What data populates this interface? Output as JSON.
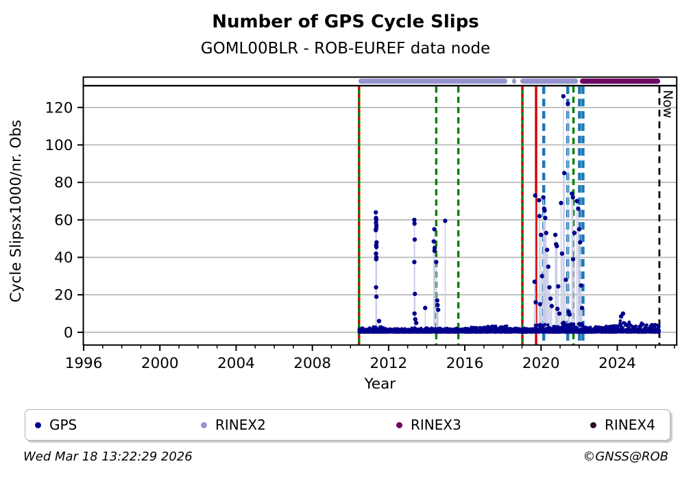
{
  "header": {
    "title": "Number of GPS Cycle Slips",
    "subtitle": "GOML00BLR - ROB-EUREF data node"
  },
  "footer": {
    "timestamp": "Wed Mar 18 13:22:29 2026",
    "copyright": "©GNSS@ROB"
  },
  "legend": {
    "items": [
      {
        "label": "GPS",
        "color": "#00008B"
      },
      {
        "label": "RINEX2",
        "color": "#9694CE"
      },
      {
        "label": "RINEX3",
        "color": "#6F0664"
      },
      {
        "label": "RINEX4",
        "color": "#2B0A26"
      }
    ]
  },
  "chart_data": {
    "type": "scatter",
    "title": "Number of GPS Cycle Slips",
    "subtitle": "GOML00BLR - ROB-EUREF data node",
    "xlabel": "Year",
    "ylabel": "Cycle Slipsx1000/nr. Obs",
    "xlim": [
      1995.98,
      2027.12
    ],
    "ylim": [
      -6.8,
      136.2
    ],
    "xticks": [
      1996,
      2000,
      2004,
      2008,
      2012,
      2016,
      2020,
      2024
    ],
    "x_minor_step": 1,
    "yticks": [
      0,
      20,
      40,
      60,
      80,
      100,
      120
    ],
    "grid": "horizontal",
    "gridline_color": "#b2b2b2",
    "series_color": "#00008B",
    "stem_color": "#c9cce6",
    "top_rule_y": 131.6,
    "now_line": {
      "x": 2026.21,
      "label": "Now",
      "color": "#000000",
      "style": "dashed"
    },
    "event_lines": [
      {
        "x": 2010.45,
        "color": "#007F00",
        "style": "solid",
        "overlay": "red-dashed"
      },
      {
        "x": 2014.5,
        "color": "#007F00",
        "style": "dashed"
      },
      {
        "x": 2015.66,
        "color": "#007F00",
        "style": "dashed"
      },
      {
        "x": 2019.02,
        "color": "#007F00",
        "style": "solid",
        "overlay": "red-dashed"
      },
      {
        "x": 2019.74,
        "color": "#D40000",
        "style": "solid"
      },
      {
        "x": 2020.14,
        "color": "#1F77B4",
        "style": "dashed"
      },
      {
        "x": 2021.4,
        "color": "#1F77B4",
        "style": "dashed"
      },
      {
        "x": 2021.7,
        "color": "#007F00",
        "style": "dashed"
      },
      {
        "x": 2022.02,
        "color": "#1F77B4",
        "style": "dashed"
      },
      {
        "x": 2022.2,
        "color": "#1F77B4",
        "style": "dashed"
      }
    ],
    "coverage_bars": [
      {
        "name": "RINEX2",
        "color": "#9694CE",
        "segments": [
          [
            2010.42,
            2018.23
          ],
          [
            2018.48,
            2018.63
          ],
          [
            2018.91,
            2021.94
          ]
        ]
      },
      {
        "name": "RINEX3",
        "color": "#6F0664",
        "segments": [
          [
            2022.04,
            2026.25
          ]
        ]
      }
    ],
    "gps_spikes": [
      [
        2011.33,
        64
      ],
      [
        2011.34,
        61
      ],
      [
        2011.35,
        60
      ],
      [
        2011.34,
        58.5
      ],
      [
        2011.36,
        57
      ],
      [
        2011.35,
        55.5
      ],
      [
        2011.33,
        54.5
      ],
      [
        2011.37,
        48
      ],
      [
        2011.35,
        46.5
      ],
      [
        2011.36,
        45.5
      ],
      [
        2011.34,
        42
      ],
      [
        2011.36,
        40
      ],
      [
        2011.35,
        39
      ],
      [
        2011.34,
        24
      ],
      [
        2011.36,
        19
      ],
      [
        2011.5,
        6
      ],
      [
        2013.35,
        60
      ],
      [
        2013.36,
        58
      ],
      [
        2013.37,
        49.5
      ],
      [
        2013.35,
        37.5
      ],
      [
        2013.38,
        20.5
      ],
      [
        2013.36,
        10
      ],
      [
        2013.4,
        7
      ],
      [
        2013.45,
        5
      ],
      [
        2013.92,
        13
      ],
      [
        2014.4,
        55
      ],
      [
        2014.37,
        48.5
      ],
      [
        2014.42,
        45
      ],
      [
        2014.41,
        43.5
      ],
      [
        2014.5,
        37.5
      ],
      [
        2014.55,
        17
      ],
      [
        2014.57,
        14.5
      ],
      [
        2014.6,
        12
      ],
      [
        2014.97,
        59.5
      ],
      [
        2019.66,
        27
      ],
      [
        2019.69,
        73
      ],
      [
        2019.72,
        16
      ],
      [
        2019.9,
        70.5
      ],
      [
        2019.92,
        62
      ],
      [
        2019.95,
        15
      ],
      [
        2020.0,
        52
      ],
      [
        2020.05,
        30
      ],
      [
        2020.12,
        72
      ],
      [
        2020.16,
        66
      ],
      [
        2020.19,
        65
      ],
      [
        2020.22,
        61
      ],
      [
        2020.27,
        53
      ],
      [
        2020.32,
        44
      ],
      [
        2020.38,
        35
      ],
      [
        2020.44,
        24
      ],
      [
        2020.5,
        18
      ],
      [
        2020.56,
        14
      ],
      [
        2020.75,
        52
      ],
      [
        2020.79,
        47
      ],
      [
        2020.83,
        46
      ],
      [
        2020.86,
        12.5
      ],
      [
        2020.9,
        24.5
      ],
      [
        2020.96,
        10
      ],
      [
        2021.05,
        69
      ],
      [
        2021.1,
        42
      ],
      [
        2021.17,
        126
      ],
      [
        2021.22,
        85
      ],
      [
        2021.3,
        28
      ],
      [
        2021.41,
        122
      ],
      [
        2021.45,
        11
      ],
      [
        2021.5,
        9.5
      ],
      [
        2021.62,
        74
      ],
      [
        2021.67,
        72
      ],
      [
        2021.68,
        39
      ],
      [
        2021.75,
        53
      ],
      [
        2021.88,
        70
      ],
      [
        2021.95,
        66
      ],
      [
        2022.0,
        55
      ],
      [
        2022.05,
        48
      ],
      [
        2022.1,
        25
      ],
      [
        2022.15,
        13
      ],
      [
        2024.2,
        8.5
      ],
      [
        2024.3,
        10
      ]
    ],
    "gps_band": {
      "start": 2010.45,
      "end": 2026.21,
      "segments": [
        [
          2010.45,
          2011.2,
          2.4
        ],
        [
          2011.2,
          2011.8,
          3.0
        ],
        [
          2011.8,
          2013.2,
          2.0
        ],
        [
          2013.2,
          2014.3,
          2.4
        ],
        [
          2014.3,
          2016.3,
          2.2
        ],
        [
          2016.3,
          2017.0,
          2.8
        ],
        [
          2017.0,
          2018.3,
          3.4
        ],
        [
          2018.3,
          2019.6,
          2.2
        ],
        [
          2019.6,
          2020.45,
          4.2
        ],
        [
          2020.45,
          2020.9,
          3.2
        ],
        [
          2020.9,
          2021.25,
          5.8
        ],
        [
          2021.25,
          2021.7,
          4.6
        ],
        [
          2021.7,
          2022.35,
          5.0
        ],
        [
          2022.35,
          2023.3,
          3.0
        ],
        [
          2023.3,
          2024.1,
          3.6
        ],
        [
          2024.1,
          2024.85,
          6.5
        ],
        [
          2024.85,
          2025.2,
          3.4
        ],
        [
          2025.2,
          2025.75,
          5.5
        ],
        [
          2025.75,
          2026.21,
          4.2
        ]
      ]
    }
  }
}
